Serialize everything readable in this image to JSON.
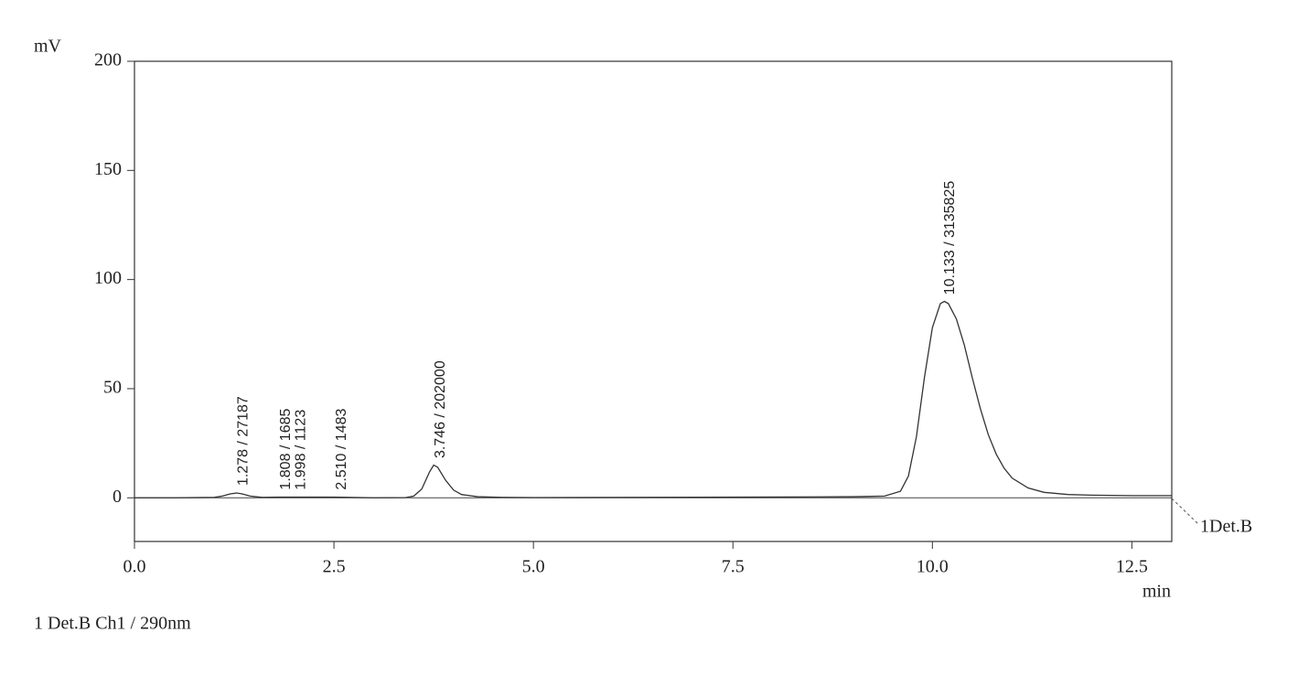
{
  "chart_data": {
    "type": "line",
    "y_label": "mV",
    "x_label": "min",
    "footer": "1 Det.B Ch1 / 290nm",
    "x": [
      0,
      0.5,
      1.0,
      1.1,
      1.2,
      1.28,
      1.35,
      1.45,
      1.6,
      1.8,
      2.0,
      2.5,
      3.0,
      3.4,
      3.5,
      3.6,
      3.7,
      3.75,
      3.8,
      3.9,
      4.0,
      4.1,
      4.3,
      4.6,
      5.0,
      7.5,
      9.0,
      9.4,
      9.6,
      9.7,
      9.8,
      9.9,
      10.0,
      10.1,
      10.15,
      10.2,
      10.3,
      10.4,
      10.5,
      10.6,
      10.7,
      10.8,
      10.9,
      11.0,
      11.2,
      11.4,
      11.7,
      12.0,
      12.5,
      13.0
    ],
    "series": [
      {
        "name": "1Det.B",
        "color": "#333333",
        "values": [
          0,
          0,
          0.2,
          0.8,
          1.8,
          2.2,
          1.8,
          0.8,
          0.2,
          0.3,
          0.3,
          0.3,
          0,
          0.1,
          0.8,
          4,
          12,
          15,
          14,
          8,
          3.5,
          1.5,
          0.5,
          0.2,
          0.1,
          0.3,
          0.5,
          0.8,
          3,
          10,
          28,
          55,
          78,
          89,
          90,
          89,
          82,
          70,
          55,
          41,
          29,
          20,
          13.5,
          9,
          4.5,
          2.5,
          1.5,
          1.2,
          1.0,
          1.0
        ]
      }
    ],
    "annotations": [
      {
        "text": "1.278 / 27187",
        "x": 1.278
      },
      {
        "text": "1.808 / 1685",
        "x": 1.808
      },
      {
        "text": "1.998 / 1123",
        "x": 1.998
      },
      {
        "text": "2.510 / 1483",
        "x": 2.51
      },
      {
        "text": "3.746 / 202000",
        "x": 3.746
      },
      {
        "text": "10.133 / 3135825",
        "x": 10.133
      }
    ],
    "xlim": [
      0,
      13
    ],
    "xticks": [
      {
        "value": 0,
        "label": "0.0"
      },
      2.5,
      {
        "value": 5,
        "label": "5.0"
      },
      7.5,
      {
        "value": 10,
        "label": "10.0"
      },
      12.5
    ],
    "ylim": [
      -20,
      200
    ],
    "yticks": [
      0,
      50,
      100,
      150,
      200
    ],
    "grid": false
  }
}
